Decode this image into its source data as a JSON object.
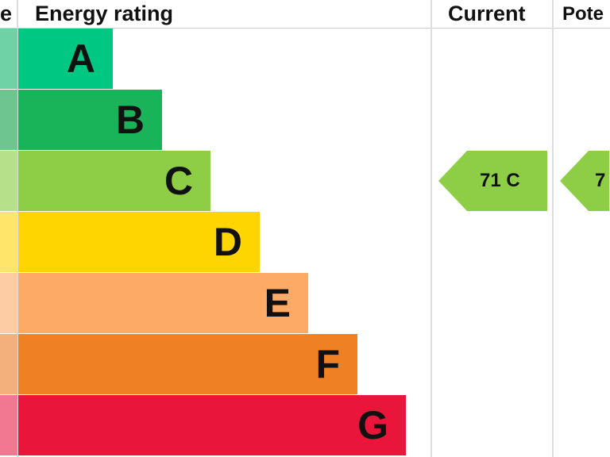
{
  "chart_data": {
    "type": "bar",
    "header": {
      "score": "e",
      "rating": "Energy rating",
      "current": "Current",
      "potential": "Pote"
    },
    "categories": [
      "A",
      "B",
      "C",
      "D",
      "E",
      "F",
      "G"
    ],
    "colors": [
      "#00c781",
      "#19b459",
      "#8dce46",
      "#ffd500",
      "#fcaa65",
      "#ef8023",
      "#e9153b"
    ],
    "left_colors": [
      "#6fd1a6",
      "#6fc590",
      "#b6e08a",
      "#ffe56a",
      "#fdcba4",
      "#f4b07c",
      "#f27891"
    ],
    "current": {
      "value": 71,
      "band": "C",
      "label": "71 C"
    },
    "potential": {
      "band": "C",
      "label": "7"
    }
  }
}
